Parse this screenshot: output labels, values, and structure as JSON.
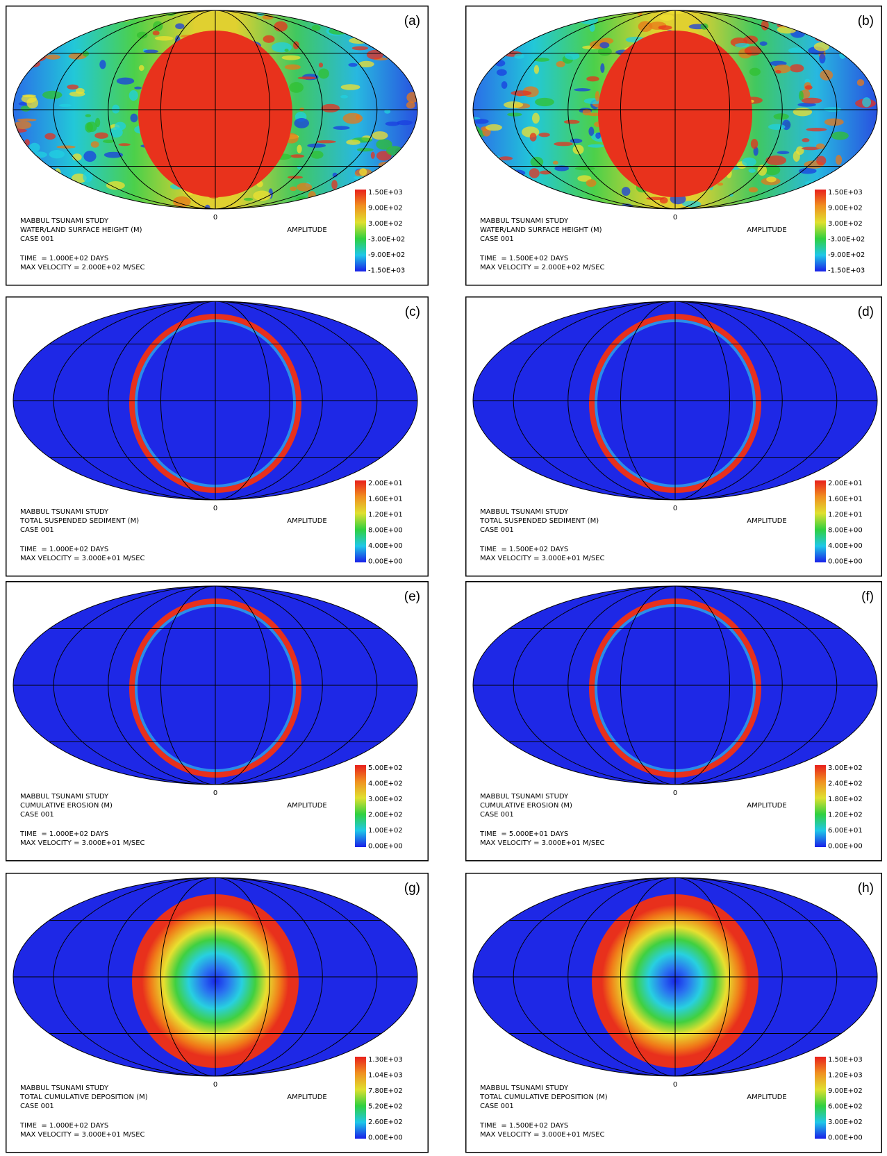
{
  "panels": [
    {
      "label": "(a)",
      "study": "MABBUL TSUNAMI STUDY",
      "quantity": "WATER/LAND SURFACE HEIGHT (M)",
      "case": "CASE 001",
      "time": "TIME  = 1.000E+02 DAYS",
      "velocity": "MAX VELOCITY = 2.000E+02 M/SEC",
      "legend_title": "AMPLITUDE",
      "axis_label": "0",
      "colorbar": [
        "1.50E+03",
        "9.00E+02",
        "3.00E+02",
        "-3.00E+02",
        "-9.00E+02",
        "-1.50E+03"
      ]
    },
    {
      "label": "(b)",
      "study": "MABBUL TSUNAMI STUDY",
      "quantity": "WATER/LAND SURFACE HEIGHT (M)",
      "case": "CASE 001",
      "time": "TIME  = 1.500E+02 DAYS",
      "velocity": "MAX VELOCITY = 2.000E+02 M/SEC",
      "legend_title": "AMPLITUDE",
      "axis_label": "0",
      "colorbar": [
        "1.50E+03",
        "9.00E+02",
        "3.00E+02",
        "-3.00E+02",
        "-9.00E+02",
        "-1.50E+03"
      ]
    },
    {
      "label": "(c)",
      "study": "MABBUL TSUNAMI STUDY",
      "quantity": "TOTAL SUSPENDED SEDIMENT (M)",
      "case": "CASE 001",
      "time": "TIME  = 1.000E+02 DAYS",
      "velocity": "MAX VELOCITY = 3.000E+01 M/SEC",
      "legend_title": "AMPLITUDE",
      "axis_label": "0",
      "colorbar": [
        "2.00E+01",
        "1.60E+01",
        "1.20E+01",
        "8.00E+00",
        "4.00E+00",
        "0.00E+00"
      ]
    },
    {
      "label": "(d)",
      "study": "MABBUL TSUNAMI STUDY",
      "quantity": "TOTAL SUSPENDED SEDIMENT (M)",
      "case": "CASE 001",
      "time": "TIME  = 1.500E+02 DAYS",
      "velocity": "MAX VELOCITY = 3.000E+01 M/SEC",
      "legend_title": "AMPLITUDE",
      "axis_label": "0",
      "colorbar": [
        "2.00E+01",
        "1.60E+01",
        "1.20E+01",
        "8.00E+00",
        "4.00E+00",
        "0.00E+00"
      ]
    },
    {
      "label": "(e)",
      "study": "MABBUL TSUNAMI STUDY",
      "quantity": "CUMULATIVE EROSION (M)",
      "case": "CASE 001",
      "time": "TIME  = 1.000E+02 DAYS",
      "velocity": "MAX VELOCITY = 3.000E+01 M/SEC",
      "legend_title": "AMPLITUDE",
      "axis_label": "0",
      "colorbar": [
        "5.00E+02",
        "4.00E+02",
        "3.00E+02",
        "2.00E+02",
        "1.00E+02",
        "0.00E+00"
      ]
    },
    {
      "label": "(f)",
      "study": "MABBUL TSUNAMI STUDY",
      "quantity": "CUMULATIVE EROSION (M)",
      "case": "CASE 001",
      "time": "TIME  = 5.000E+01 DAYS",
      "velocity": "MAX VELOCITY = 3.000E+01 M/SEC",
      "legend_title": "AMPLITUDE",
      "axis_label": "0",
      "colorbar": [
        "3.00E+02",
        "2.40E+02",
        "1.80E+02",
        "1.20E+02",
        "6.00E+01",
        "0.00E+00"
      ]
    },
    {
      "label": "(g)",
      "study": "MABBUL TSUNAMI STUDY",
      "quantity": "TOTAL CUMULATIVE DEPOSITION (M)",
      "case": "CASE 001",
      "time": "TIME  = 1.000E+02 DAYS",
      "velocity": "MAX VELOCITY = 3.000E+01 M/SEC",
      "legend_title": "AMPLITUDE",
      "axis_label": "0",
      "colorbar": [
        "1.30E+03",
        "1.04E+03",
        "7.80E+02",
        "5.20E+02",
        "2.60E+02",
        "0.00E+00"
      ]
    },
    {
      "label": "(h)",
      "study": "MABBUL TSUNAMI STUDY",
      "quantity": "TOTAL CUMULATIVE DEPOSITION (M)",
      "case": "CASE 001",
      "time": "TIME  = 1.500E+02 DAYS",
      "velocity": "MAX VELOCITY = 3.000E+01 M/SEC",
      "legend_title": "AMPLITUDE",
      "axis_label": "0",
      "colorbar": [
        "1.50E+03",
        "1.20E+03",
        "9.00E+02",
        "6.00E+02",
        "3.00E+02",
        "0.00E+00"
      ]
    }
  ]
}
